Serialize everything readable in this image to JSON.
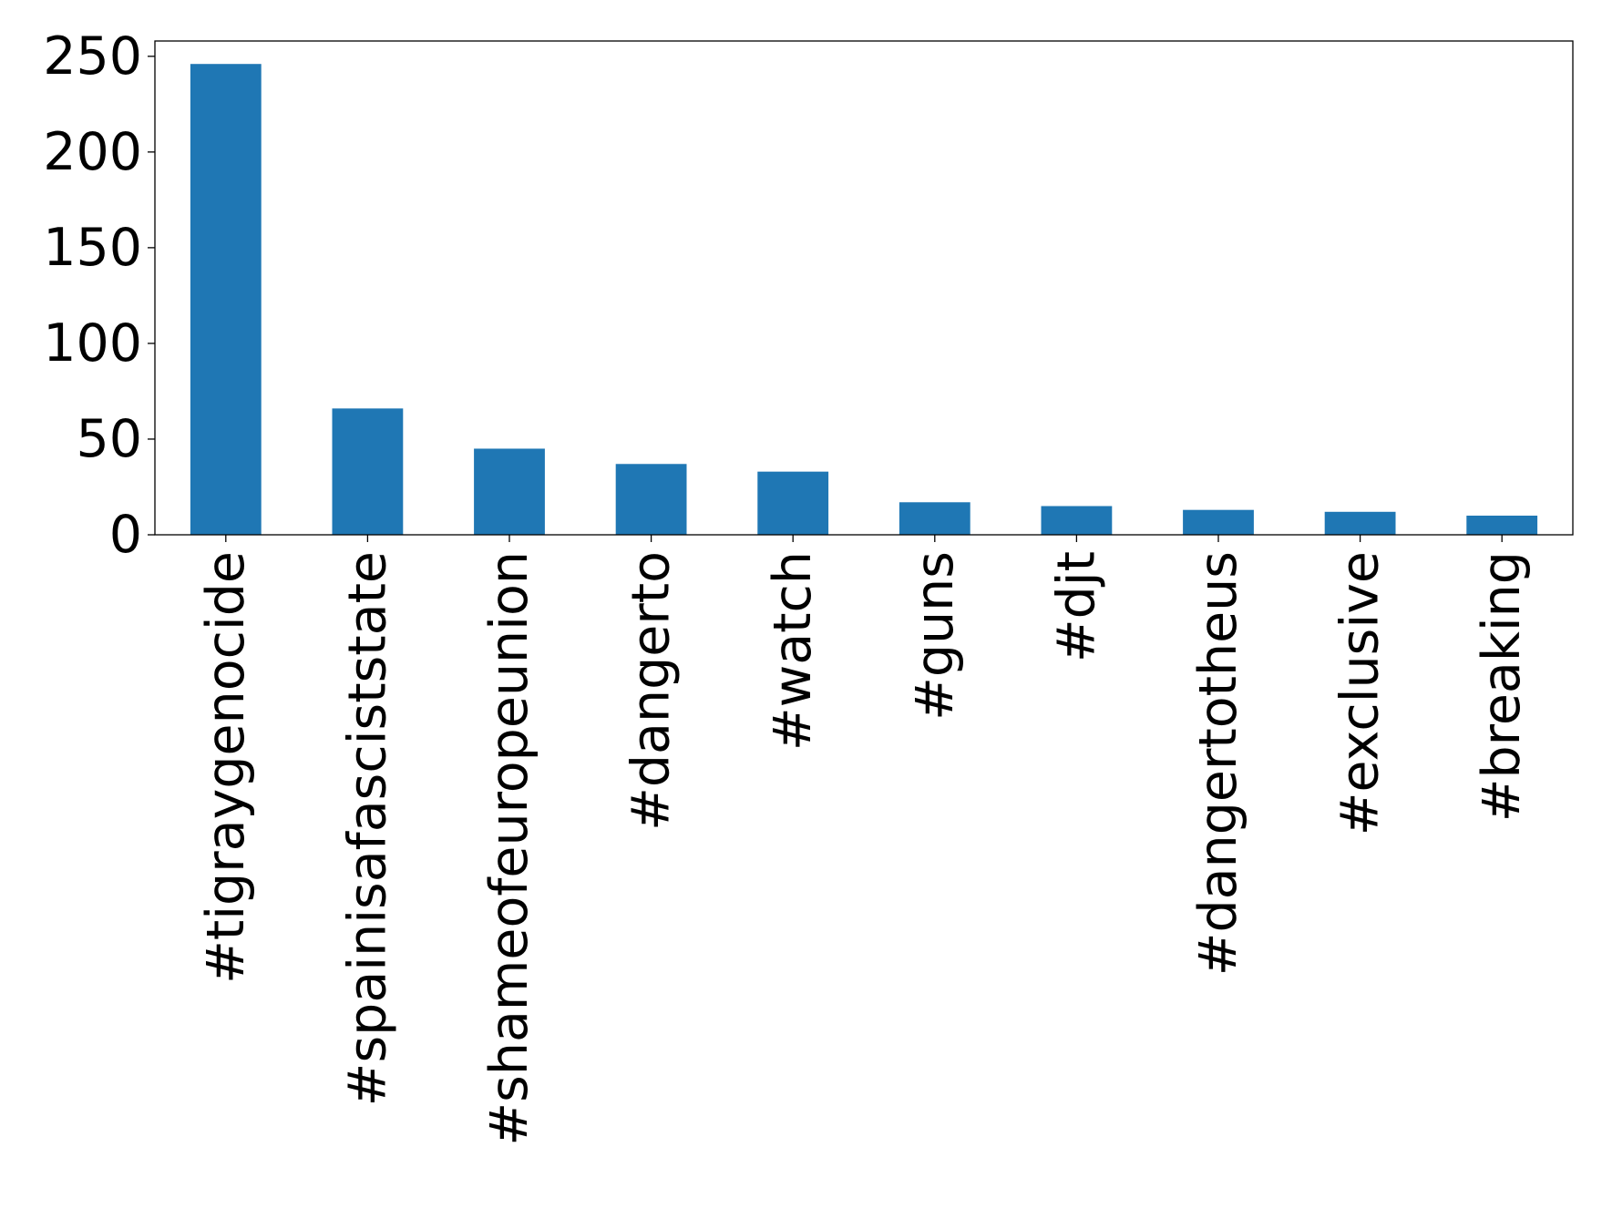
{
  "chart_data": {
    "type": "bar",
    "title": "",
    "xlabel": "",
    "ylabel": "",
    "categories": [
      "#tigraygenocide",
      "#spainisafasciststate",
      "#shameofeuropeunion",
      "#dangerto",
      "#watch",
      "#guns",
      "#djt",
      "#dangertotheus",
      "#exclusive",
      "#breaking"
    ],
    "values": [
      246,
      66,
      45,
      37,
      33,
      17,
      15,
      13,
      12,
      10
    ],
    "ylim": [
      0,
      258
    ],
    "yticks": [
      0,
      50,
      100,
      150,
      200,
      250
    ],
    "grid": false,
    "legend": "none",
    "bar_color": "#1f77b4",
    "axis_color": "#000000"
  }
}
